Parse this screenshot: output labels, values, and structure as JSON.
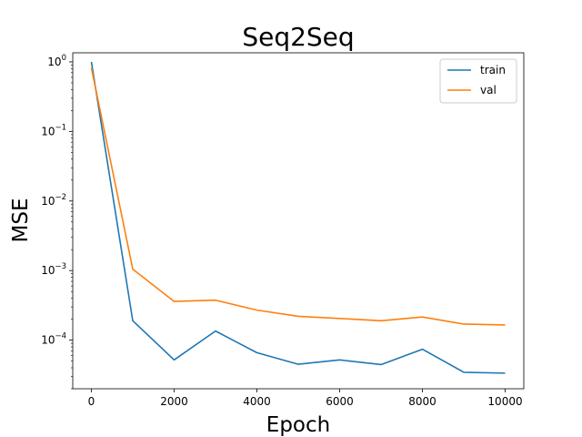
{
  "chart_data": {
    "type": "line",
    "title": "Seq2Seq",
    "xlabel": "Epoch",
    "ylabel": "MSE",
    "yscale": "log",
    "xlim": [
      -450,
      10450
    ],
    "ylim": [
      2e-05,
      1.35
    ],
    "xticks": [
      0,
      2000,
      4000,
      6000,
      8000,
      10000
    ],
    "xtick_labels": [
      "0",
      "2000",
      "4000",
      "6000",
      "8000",
      "10000"
    ],
    "yticks": [
      {
        "value": 1,
        "base": "10",
        "exp": "0"
      },
      {
        "value": 0.1,
        "base": "10",
        "exp": "−1"
      },
      {
        "value": 0.01,
        "base": "10",
        "exp": "−2"
      },
      {
        "value": 0.001,
        "base": "10",
        "exp": "−3"
      },
      {
        "value": 0.0001,
        "base": "10",
        "exp": "−4"
      }
    ],
    "grid": false,
    "legend_position": "top-right",
    "x": [
      0,
      1000,
      2000,
      3000,
      4000,
      5000,
      6000,
      7000,
      8000,
      9000,
      10000
    ],
    "series": [
      {
        "name": "train",
        "color": "#1f77b4",
        "values": [
          1.0,
          0.00019,
          5.2e-05,
          0.000135,
          6.6e-05,
          4.5e-05,
          5.2e-05,
          4.45e-05,
          7.4e-05,
          3.45e-05,
          3.35e-05
        ]
      },
      {
        "name": "val",
        "color": "#ff7f0e",
        "values": [
          0.82,
          0.00105,
          0.00036,
          0.000375,
          0.00027,
          0.00022,
          0.000205,
          0.00019,
          0.000215,
          0.00017,
          0.000165
        ]
      }
    ]
  }
}
